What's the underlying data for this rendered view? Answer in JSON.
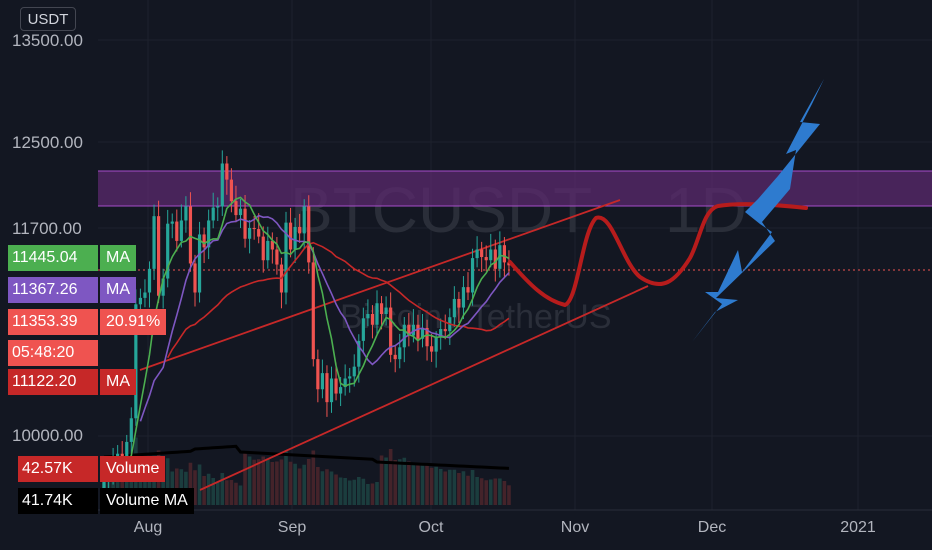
{
  "chart_data": {
    "type": "candlestick",
    "symbol": "BTCUSDT",
    "timeframe": "1D",
    "description": "Bitcoin / TetherUS",
    "currency": "USDT",
    "y_ticks": [
      "13500.00",
      "12500.00",
      "11700.00",
      "10000.00"
    ],
    "x_ticks": [
      "Aug",
      "Sep",
      "Oct",
      "Nov",
      "Dec",
      "2021"
    ],
    "resistance_zone": [
      11900,
      12200
    ],
    "tags": {
      "ma_fast": {
        "value": "11445.04",
        "label": "MA",
        "color": "#4caf50"
      },
      "ma_mid": {
        "value": "11367.26",
        "label": "MA",
        "color": "#7e57c2"
      },
      "last_price": {
        "value": "11353.39",
        "label": "20.91%",
        "color": "#ef5350"
      },
      "countdown": {
        "value": "05:48:20",
        "color": "#ef5350"
      },
      "ma_slow": {
        "value": "11122.20",
        "label": "MA",
        "color": "#c62828"
      },
      "volume": {
        "value": "42.57K",
        "label": "Volume",
        "color": "#c62828"
      },
      "volume_ma": {
        "value": "41.74K",
        "label": "Volume MA",
        "color": "#000000"
      }
    }
  },
  "colors": {
    "background": "#131722",
    "up": "#26a69a",
    "down": "#ef5350",
    "zone": "#5b2a6e",
    "drawing_red": "#b71c1c",
    "arrow_blue": "#2e7bcf",
    "grid": "#1e222d"
  }
}
